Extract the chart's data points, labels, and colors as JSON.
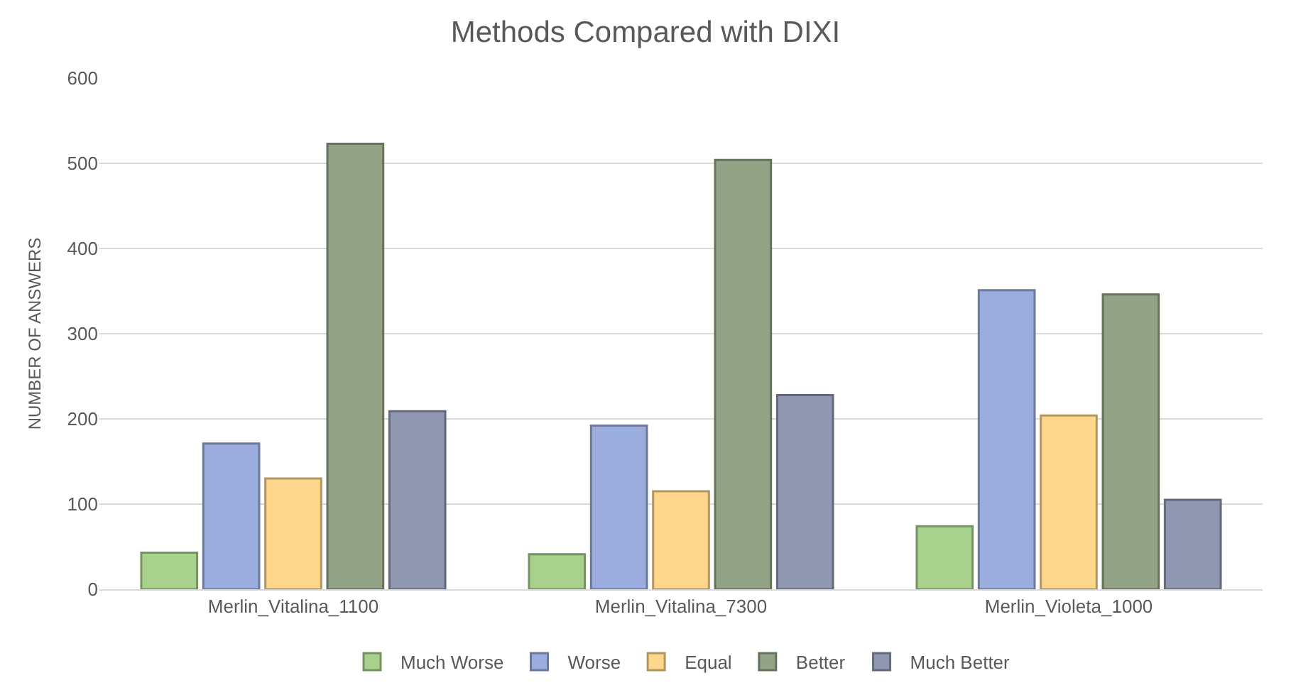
{
  "chart_data": {
    "type": "bar",
    "title": "Methods Compared with DIXI",
    "ylabel": "NUMBER OF ANSWERS",
    "categories": [
      "Merlin_Vitalina_1100",
      "Merlin_Vitalina_7300",
      "Merlin_Violeta_1000"
    ],
    "series": [
      {
        "name": "Much Worse",
        "color": "#a9d18e",
        "values": [
          43,
          41,
          74
        ]
      },
      {
        "name": "Worse",
        "color": "#9badde",
        "values": [
          171,
          192,
          351
        ]
      },
      {
        "name": "Equal",
        "color": "#ffd78c",
        "values": [
          130,
          115,
          204
        ]
      },
      {
        "name": "Better",
        "color": "#93a486",
        "values": [
          523,
          504,
          346
        ]
      },
      {
        "name": "Much Better",
        "color": "#9097b0",
        "values": [
          209,
          228,
          105
        ]
      }
    ],
    "ylim": [
      0,
      600
    ],
    "yticks": [
      0,
      100,
      200,
      300,
      400,
      500,
      600
    ],
    "grid": "y",
    "legend": "bottom"
  }
}
